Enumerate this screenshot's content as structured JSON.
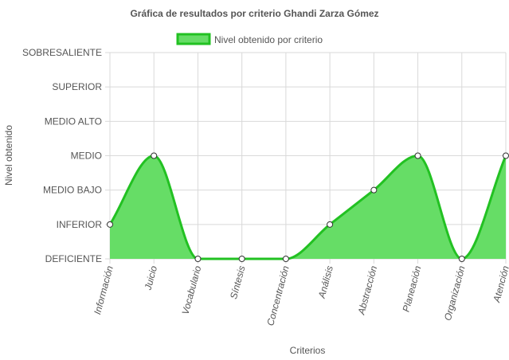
{
  "chart_data": {
    "type": "area",
    "title": "Gráfica de resultados por criterio Ghandi Zarza Gómez",
    "xlabel": "Criterios",
    "ylabel": "Nivel obtenido",
    "y_levels": [
      "DEFICIENTE",
      "INFERIOR",
      "MEDIO BAJO",
      "MEDIO",
      "MEDIO ALTO",
      "SUPERIOR",
      "SOBRESALIENTE"
    ],
    "ylim": [
      1,
      7
    ],
    "categories": [
      "Información",
      "Juicio",
      "Vocabulario",
      "Síntesis",
      "Concentración",
      "Análisis",
      "Abstracción",
      "Planeación",
      "Organización",
      "Atención"
    ],
    "series": [
      {
        "name": "Nivel obtenido por criterio",
        "values": [
          2,
          4,
          1,
          1,
          1,
          2,
          3,
          4,
          1,
          4
        ],
        "fill_color": "#66dd66",
        "line_color": "#22c122",
        "point_color": "#ffffff"
      }
    ],
    "legend_position": "top",
    "grid": true
  }
}
